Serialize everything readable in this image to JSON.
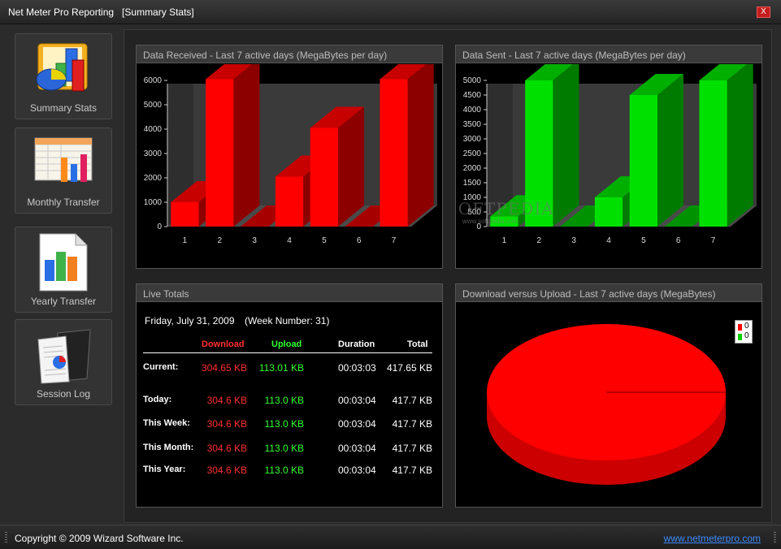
{
  "window": {
    "title": "Net Meter Pro Reporting   [Summary Stats]",
    "close_label": "X"
  },
  "sidebar": {
    "items": [
      {
        "label": "Summary Stats",
        "icon": "summary-chart-icon"
      },
      {
        "label": "Monthly Transfer",
        "icon": "spreadsheet-chart-icon"
      },
      {
        "label": "Yearly Transfer",
        "icon": "document-bar-chart-icon"
      },
      {
        "label": "Session Log",
        "icon": "report-pie-icon"
      }
    ]
  },
  "panels": {
    "received_title": "Data Received - Last 7 active days (MegaBytes per day)",
    "sent_title": "Data Sent - Last 7 active days (MegaBytes per day)",
    "live_title": "Live Totals",
    "pie_title": "Download versus Upload - Last 7 active days (MegaBytes)"
  },
  "chart_data": [
    {
      "type": "bar",
      "title": "Data Received - Last 7 active days (MegaBytes per day)",
      "categories": [
        "1",
        "2",
        "3",
        "4",
        "5",
        "6",
        "7"
      ],
      "values": [
        1000,
        6050,
        0,
        2050,
        4050,
        0,
        6050
      ],
      "ylim": [
        0,
        6000
      ],
      "yticks": [
        "0",
        "1000",
        "2000",
        "3000",
        "4000",
        "5000",
        "6000"
      ],
      "color": "#ff0000",
      "grid": false
    },
    {
      "type": "bar",
      "title": "Data Sent - Last 7 active days (MegaBytes per day)",
      "categories": [
        "1",
        "2",
        "3",
        "4",
        "5",
        "6",
        "7"
      ],
      "values": [
        350,
        5000,
        0,
        1000,
        4500,
        0,
        5000
      ],
      "ylim": [
        0,
        5000
      ],
      "yticks": [
        "0",
        "500",
        "1000",
        "1500",
        "2000",
        "2500",
        "3000",
        "3500",
        "4000",
        "4500",
        "5000"
      ],
      "color": "#00e000",
      "grid": false
    },
    {
      "type": "pie",
      "title": "Download versus Upload - Last 7 active days (MegaBytes)",
      "values": [
        0,
        0
      ],
      "legend": [
        "0",
        "0"
      ],
      "colors": [
        "#ff0000",
        "#00d000"
      ],
      "legend_position": "top-right"
    }
  ],
  "watermark": {
    "text": "SOFTPEDIA",
    "sub": "www.softpedia.com"
  },
  "live": {
    "date": "Friday, July 31, 2009",
    "week": "(Week Number: 31)",
    "headers": {
      "download": "Download",
      "upload": "Upload",
      "duration": "Duration",
      "total": "Total"
    },
    "rows": [
      {
        "label": "Current:",
        "download": "304.65 KB",
        "upload": "113.01 KB",
        "duration": "00:03:03",
        "total": "417.65 KB"
      },
      {
        "label": "Today:",
        "download": "304.6 KB",
        "upload": "113.0 KB",
        "duration": "00:03:04",
        "total": "417.7 KB"
      },
      {
        "label": "This Week:",
        "download": "304.6 KB",
        "upload": "113.0 KB",
        "duration": "00:03:04",
        "total": "417.7 KB"
      },
      {
        "label": "This Month:",
        "download": "304.6 KB",
        "upload": "113.0 KB",
        "duration": "00:03:04",
        "total": "417.7 KB"
      },
      {
        "label": "This Year:",
        "download": "304.6 KB",
        "upload": "113.0 KB",
        "duration": "00:03:04",
        "total": "417.7 KB"
      }
    ]
  },
  "status": {
    "copyright": "Copyright © 2009 Wizard Software Inc.",
    "link": "www.netmeterpro.com"
  }
}
